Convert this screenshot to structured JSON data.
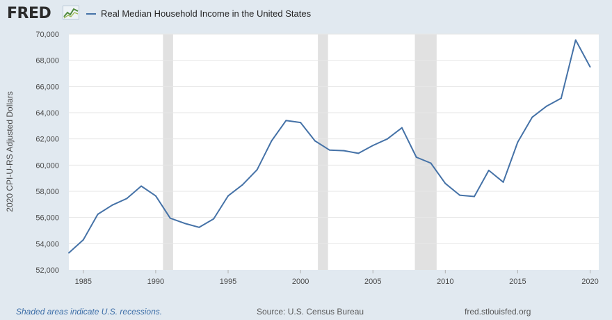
{
  "header": {
    "logo_text": "FRED",
    "logo_icon": "line-chart-icon",
    "legend_label": "Real Median Household Income in the United States",
    "legend_color": "#4572a7"
  },
  "footer": {
    "recession_note": "Shaded areas indicate U.S. recessions.",
    "source": "Source: U.S. Census Bureau",
    "site": "fred.stlouisfed.org"
  },
  "colors": {
    "page_background": "#e1e9f0",
    "plot_background": "#ffffff",
    "gridline": "#e6e6e6",
    "recession_shade": "#e1e1e1",
    "series_line": "#4572a7"
  },
  "chart_data": {
    "type": "line",
    "ylabel": "2020 CPI-U-RS Adjusted Dollars",
    "xlabel": "",
    "xlim": [
      1984,
      2020.6
    ],
    "ylim": [
      52000,
      70000
    ],
    "x_ticks": [
      "1985",
      "1990",
      "1995",
      "2000",
      "2005",
      "2010",
      "2015",
      "2020"
    ],
    "y_ticks": [
      "52,000",
      "54,000",
      "56,000",
      "58,000",
      "60,000",
      "62,000",
      "64,000",
      "66,000",
      "68,000",
      "70,000"
    ],
    "grid": true,
    "legend_position": "top-left",
    "recessions": [
      [
        1990.5,
        1991.2
      ],
      [
        2001.2,
        2001.9
      ],
      [
        2007.9,
        2009.4
      ]
    ],
    "series": [
      {
        "name": "Real Median Household Income in the United States",
        "x": [
          1984,
          1985,
          1986,
          1987,
          1988,
          1989,
          1990,
          1991,
          1992,
          1993,
          1994,
          1995,
          1996,
          1997,
          1998,
          1999,
          2000,
          2001,
          2002,
          2003,
          2004,
          2005,
          2006,
          2007,
          2008,
          2009,
          2010,
          2011,
          2012,
          2013,
          2014,
          2015,
          2016,
          2017,
          2018,
          2019,
          2020
        ],
        "values": [
          53300,
          54300,
          56250,
          56950,
          57450,
          58400,
          57650,
          55950,
          55550,
          55250,
          55900,
          57650,
          58500,
          59650,
          61850,
          63400,
          63250,
          61850,
          61150,
          61100,
          60900,
          61500,
          62000,
          62850,
          60600,
          60150,
          58600,
          57700,
          57600,
          59600,
          58700,
          61750,
          63650,
          64500,
          65100,
          69550,
          67500
        ]
      }
    ]
  }
}
